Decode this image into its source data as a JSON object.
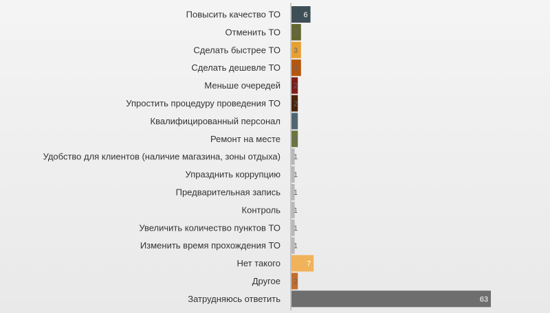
{
  "chart_data": {
    "type": "bar",
    "orientation": "horizontal",
    "categories": [
      "Повысить качество ТО",
      "Отменить ТО",
      "Сделать быстрее ТО",
      "Сделать дешевле ТО",
      "Меньше очередей",
      "Упростить процедуру проведения ТО",
      "Квалифицированный персонал",
      "Ремонт на месте",
      "Удобство для клиентов (наличие магазина, зоны отдыха)",
      "Упразднить коррупцию",
      "Предварительная запись",
      "Контроль",
      "Увеличить количество пунктов ТО",
      "Изменить время прохождения ТО",
      "Нет такого",
      "Другое",
      "Затрудняюсь ответить"
    ],
    "values": [
      6,
      3,
      3,
      3,
      2,
      2,
      2,
      2,
      1,
      1,
      1,
      1,
      1,
      1,
      7,
      2,
      63
    ],
    "colors": [
      "#3f4f57",
      "#646830",
      "#e8a033",
      "#b4560e",
      "#7d1e18",
      "#4a2308",
      "#4d6772",
      "#6b7540",
      "#b8b8b8",
      "#b8b8b8",
      "#b8b8b8",
      "#b8b8b8",
      "#b8b8b8",
      "#b8b8b8",
      "#f0b25a",
      "#c46d2c",
      "#6e6e6e"
    ],
    "xlim": [
      0,
      63
    ],
    "grid": false,
    "legend": false
  }
}
